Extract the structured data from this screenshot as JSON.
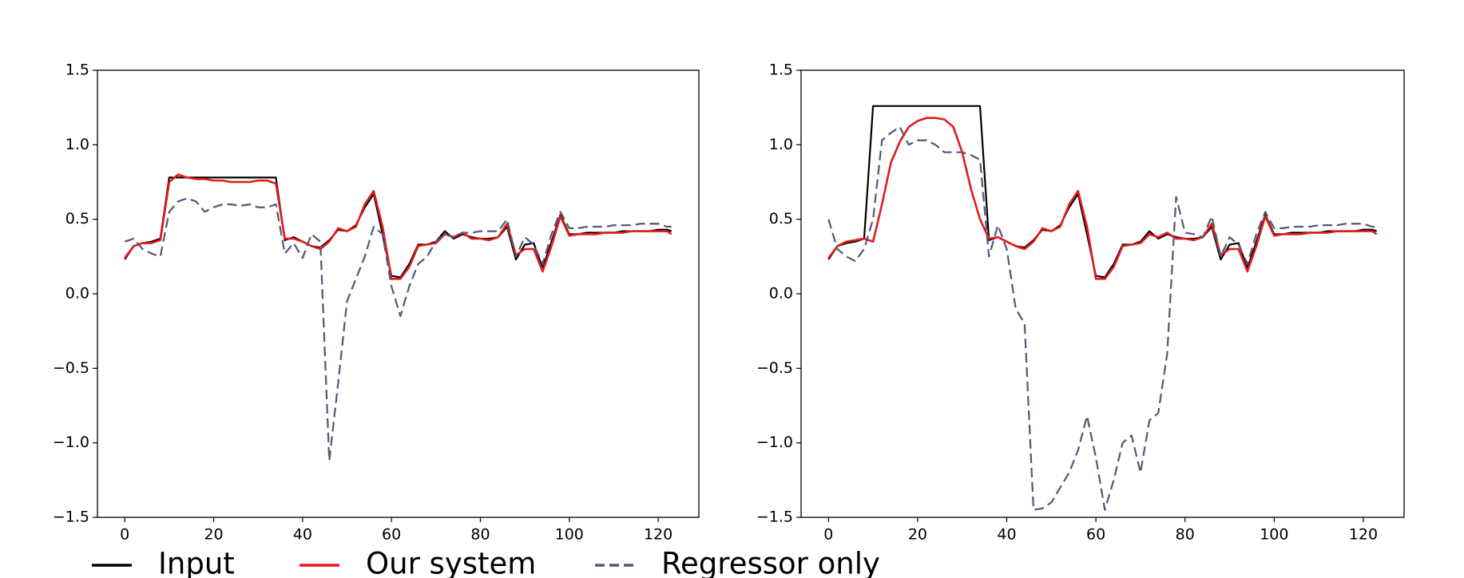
{
  "chart_data": [
    {
      "type": "line",
      "x": [
        0,
        2,
        4,
        6,
        8,
        10,
        12,
        14,
        16,
        18,
        20,
        22,
        24,
        26,
        28,
        30,
        32,
        34,
        36,
        38,
        40,
        42,
        44,
        46,
        48,
        50,
        52,
        54,
        56,
        58,
        60,
        62,
        64,
        66,
        68,
        70,
        72,
        74,
        76,
        78,
        80,
        82,
        84,
        86,
        88,
        90,
        92,
        94,
        96,
        98,
        100,
        102,
        104,
        106,
        108,
        110,
        112,
        114,
        116,
        118,
        120,
        122,
        123
      ],
      "xlim": [
        -6.15,
        129.15
      ],
      "xticks": [
        0,
        20,
        40,
        60,
        80,
        100,
        120
      ],
      "ylim": [
        -1.5,
        1.5
      ],
      "yticks": [
        {
          "value": -1.5,
          "label": "−1.5"
        },
        {
          "value": -1.0,
          "label": "−1.0"
        },
        {
          "value": -0.5,
          "label": "−0.5"
        },
        {
          "value": 0.0,
          "label": "0.0"
        },
        {
          "value": 0.5,
          "label": "0.5"
        },
        {
          "value": 1.0,
          "label": "1.0"
        },
        {
          "value": 1.5,
          "label": "1.5"
        }
      ],
      "series": [
        {
          "name": "Input",
          "color": "#000000",
          "linestyle": "solid",
          "values": [
            0.23,
            0.32,
            0.34,
            0.35,
            0.37,
            0.78,
            0.78,
            0.78,
            0.78,
            0.78,
            0.78,
            0.78,
            0.78,
            0.78,
            0.78,
            0.78,
            0.78,
            0.78,
            0.36,
            0.38,
            0.35,
            0.32,
            0.31,
            0.36,
            0.43,
            0.42,
            0.46,
            0.58,
            0.67,
            0.4,
            0.12,
            0.11,
            0.2,
            0.33,
            0.33,
            0.35,
            0.42,
            0.37,
            0.4,
            0.38,
            0.37,
            0.37,
            0.38,
            0.45,
            0.23,
            0.33,
            0.34,
            0.17,
            0.35,
            0.53,
            0.4,
            0.4,
            0.41,
            0.41,
            0.41,
            0.41,
            0.42,
            0.42,
            0.42,
            0.42,
            0.43,
            0.43,
            0.42
          ]
        },
        {
          "name": "Our system",
          "color": "#e41a1c",
          "linestyle": "solid",
          "values": [
            0.24,
            0.32,
            0.34,
            0.34,
            0.36,
            0.75,
            0.8,
            0.78,
            0.77,
            0.77,
            0.76,
            0.76,
            0.75,
            0.75,
            0.75,
            0.76,
            0.76,
            0.74,
            0.37,
            0.37,
            0.35,
            0.32,
            0.3,
            0.35,
            0.44,
            0.42,
            0.45,
            0.6,
            0.69,
            0.45,
            0.1,
            0.1,
            0.18,
            0.32,
            0.33,
            0.34,
            0.4,
            0.38,
            0.41,
            0.37,
            0.37,
            0.36,
            0.38,
            0.47,
            0.26,
            0.3,
            0.3,
            0.15,
            0.32,
            0.52,
            0.39,
            0.4,
            0.4,
            0.4,
            0.41,
            0.41,
            0.41,
            0.42,
            0.42,
            0.42,
            0.42,
            0.42,
            0.4
          ]
        },
        {
          "name": "Regressor only",
          "color": "#555577",
          "linestyle": "dashed",
          "values": [
            0.35,
            0.37,
            0.3,
            0.27,
            0.25,
            0.55,
            0.62,
            0.64,
            0.62,
            0.55,
            0.58,
            0.6,
            0.6,
            0.59,
            0.6,
            0.58,
            0.58,
            0.6,
            0.27,
            0.34,
            0.24,
            0.4,
            0.35,
            -1.12,
            -0.6,
            -0.05,
            0.1,
            0.25,
            0.45,
            0.4,
            0.05,
            -0.15,
            0.05,
            0.2,
            0.25,
            0.35,
            0.4,
            0.38,
            0.41,
            0.41,
            0.42,
            0.42,
            0.42,
            0.5,
            0.25,
            0.38,
            0.33,
            0.2,
            0.4,
            0.55,
            0.44,
            0.44,
            0.45,
            0.45,
            0.45,
            0.46,
            0.46,
            0.46,
            0.47,
            0.47,
            0.47,
            0.45,
            0.45
          ]
        }
      ]
    },
    {
      "type": "line",
      "x": [
        0,
        2,
        4,
        6,
        8,
        10,
        12,
        14,
        16,
        18,
        20,
        22,
        24,
        26,
        28,
        30,
        32,
        34,
        36,
        38,
        40,
        42,
        44,
        46,
        48,
        50,
        52,
        54,
        56,
        58,
        60,
        62,
        64,
        66,
        68,
        70,
        72,
        74,
        76,
        78,
        80,
        82,
        84,
        86,
        88,
        90,
        92,
        94,
        96,
        98,
        100,
        102,
        104,
        106,
        108,
        110,
        112,
        114,
        116,
        118,
        120,
        122,
        123
      ],
      "xlim": [
        -6.15,
        129.15
      ],
      "xticks": [
        0,
        20,
        40,
        60,
        80,
        100,
        120
      ],
      "ylim": [
        -1.5,
        1.5
      ],
      "yticks": [
        {
          "value": -1.5,
          "label": "−1.5"
        },
        {
          "value": -1.0,
          "label": "−1.0"
        },
        {
          "value": -0.5,
          "label": "−0.5"
        },
        {
          "value": 0.0,
          "label": "0.0"
        },
        {
          "value": 0.5,
          "label": "0.5"
        },
        {
          "value": 1.0,
          "label": "1.0"
        },
        {
          "value": 1.5,
          "label": "1.5"
        }
      ],
      "series": [
        {
          "color": "#000000",
          "linestyle": "solid",
          "values": [
            0.23,
            0.32,
            0.34,
            0.35,
            0.37,
            1.26,
            1.26,
            1.26,
            1.26,
            1.26,
            1.26,
            1.26,
            1.26,
            1.26,
            1.26,
            1.26,
            1.26,
            1.26,
            0.36,
            0.38,
            0.35,
            0.32,
            0.31,
            0.36,
            0.43,
            0.42,
            0.46,
            0.58,
            0.67,
            0.4,
            0.12,
            0.11,
            0.2,
            0.33,
            0.33,
            0.35,
            0.42,
            0.37,
            0.4,
            0.38,
            0.37,
            0.37,
            0.38,
            0.45,
            0.23,
            0.33,
            0.34,
            0.17,
            0.35,
            0.53,
            0.4,
            0.4,
            0.41,
            0.41,
            0.41,
            0.41,
            0.42,
            0.42,
            0.42,
            0.42,
            0.43,
            0.43,
            0.42
          ]
        },
        {
          "color": "#e41a1c",
          "linestyle": "solid",
          "values": [
            0.24,
            0.32,
            0.35,
            0.36,
            0.37,
            0.35,
            0.6,
            0.88,
            1.02,
            1.12,
            1.16,
            1.18,
            1.18,
            1.17,
            1.12,
            0.95,
            0.7,
            0.5,
            0.37,
            0.38,
            0.35,
            0.32,
            0.3,
            0.35,
            0.44,
            0.42,
            0.45,
            0.6,
            0.69,
            0.45,
            0.1,
            0.1,
            0.18,
            0.32,
            0.33,
            0.34,
            0.4,
            0.38,
            0.41,
            0.37,
            0.37,
            0.36,
            0.38,
            0.47,
            0.26,
            0.3,
            0.3,
            0.15,
            0.32,
            0.52,
            0.39,
            0.4,
            0.4,
            0.4,
            0.41,
            0.41,
            0.41,
            0.42,
            0.42,
            0.42,
            0.42,
            0.42,
            0.4
          ]
        },
        {
          "color": "#555577",
          "linestyle": "dashed",
          "values": [
            0.5,
            0.3,
            0.25,
            0.22,
            0.3,
            0.5,
            1.03,
            1.08,
            1.12,
            1.0,
            1.03,
            1.03,
            1.0,
            0.95,
            0.95,
            0.95,
            0.93,
            0.9,
            0.25,
            0.46,
            0.3,
            -0.1,
            -0.2,
            -1.45,
            -1.44,
            -1.4,
            -1.3,
            -1.2,
            -1.05,
            -0.82,
            -1.1,
            -1.45,
            -1.25,
            -1.0,
            -0.95,
            -1.2,
            -0.85,
            -0.8,
            -0.4,
            0.65,
            0.41,
            0.4,
            0.38,
            0.52,
            0.25,
            0.38,
            0.33,
            0.2,
            0.4,
            0.55,
            0.44,
            0.44,
            0.45,
            0.45,
            0.45,
            0.46,
            0.46,
            0.46,
            0.47,
            0.47,
            0.47,
            0.45,
            0.45
          ]
        }
      ]
    }
  ]
}
